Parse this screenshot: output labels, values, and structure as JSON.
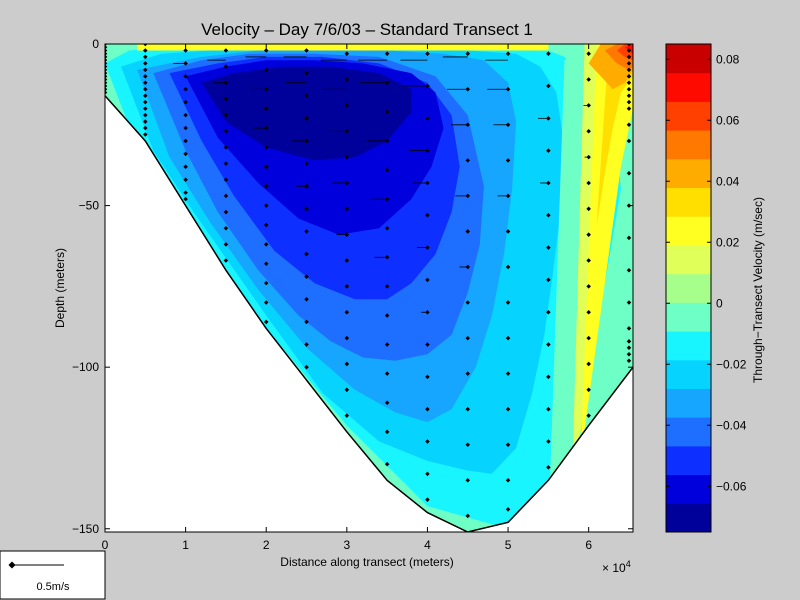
{
  "chart_data": {
    "type": "heatmap",
    "title": "Velocity – Day 7/6/03 – Standard Transect 1",
    "xlabel": "Distance along transect (meters)",
    "ylabel": "Depth (meters)",
    "x_multiplier_label": "× 10",
    "x_multiplier_exp": "4",
    "xlim": [
      0,
      65500
    ],
    "ylim": [
      -151,
      0
    ],
    "x_ticks": [
      0,
      10000,
      20000,
      30000,
      40000,
      50000,
      60000
    ],
    "x_tick_labels": [
      "0",
      "1",
      "2",
      "3",
      "4",
      "5",
      "6"
    ],
    "y_ticks": [
      0,
      -50,
      -100,
      -150
    ],
    "y_tick_labels": [
      "0",
      "−50",
      "−100",
      "−150"
    ],
    "colorbar": {
      "label": "Through−Transect Velocity (m/sec)",
      "min": -0.075,
      "max": 0.085,
      "ticks": [
        0.08,
        0.06,
        0.04,
        0.02,
        0,
        -0.02,
        -0.04,
        -0.06
      ],
      "tick_labels": [
        "0.08",
        "0.06",
        "0.04",
        "0.02",
        "0",
        "−0.02",
        "−0.04",
        "−0.06"
      ],
      "colors": [
        "#00009b",
        "#0000dc",
        "#0d2fff",
        "#1e6fff",
        "#16a6ff",
        "#06d4ff",
        "#18f5ff",
        "#6dffc5",
        "#a7ff8b",
        "#e1ff59",
        "#ffff21",
        "#ffdf00",
        "#ffac00",
        "#ff7800",
        "#ff4000",
        "#ff0a00",
        "#c90000"
      ]
    },
    "bottom": {
      "x": [
        0,
        5000,
        10000,
        15000,
        20000,
        25000,
        30000,
        35000,
        40000,
        45000,
        50000,
        55000,
        60000,
        65500
      ],
      "depth": [
        -16,
        -30,
        -50,
        -70,
        -88,
        -104,
        -120,
        -135,
        -145,
        -151,
        -148,
        -135,
        -118,
        -100
      ]
    },
    "vector_scale": {
      "label": "0.5m/s",
      "value": 0.5
    },
    "contours": [
      {
        "level": -0.01,
        "x": [
          0,
          4000,
          10000,
          20000,
          30000,
          40000,
          50000,
          55000,
          58000,
          59500,
          60500,
          62000,
          63000,
          64000,
          63500,
          61000,
          58500,
          57000,
          55000,
          53000,
          50000,
          46000,
          41000,
          35000,
          27000,
          20000,
          14000,
          8000,
          3000
        ],
        "y": [
          -6,
          -32,
          -51,
          -88,
          -118,
          -143,
          -150,
          -137,
          -122,
          -110,
          -92,
          -74,
          -60,
          -45,
          -30,
          -20,
          -10,
          -4,
          -2,
          -1,
          -1,
          -1,
          -1,
          -1,
          -1,
          -1,
          -1,
          -1,
          -2
        ]
      },
      {
        "level": -0.02,
        "x": [
          2000,
          6000,
          11000,
          20000,
          27000,
          34000,
          40000,
          45000,
          48000,
          51000,
          53000,
          54500,
          55500,
          56500,
          57000,
          56000,
          54000,
          51000,
          45000,
          37000,
          28000,
          20000,
          13000,
          7000
        ],
        "y": [
          -7,
          -33,
          -52,
          -84,
          -108,
          -123,
          -129,
          -132,
          -133,
          -125,
          -108,
          -90,
          -72,
          -52,
          -32,
          -15,
          -7,
          -3,
          -2,
          -2,
          -2,
          -2,
          -2,
          -3
        ]
      },
      {
        "level": -0.03,
        "x": [
          4000,
          8000,
          13000,
          19000,
          25000,
          31000,
          36000,
          40000,
          43000,
          46000,
          48000,
          49500,
          50500,
          51000,
          50000,
          47000,
          42000,
          35000,
          27000,
          19000,
          12000
        ],
        "y": [
          -8,
          -35,
          -55,
          -76,
          -94,
          -107,
          -114,
          -117,
          -113,
          -100,
          -84,
          -65,
          -45,
          -24,
          -12,
          -5,
          -3,
          -2,
          -2,
          -2,
          -4
        ]
      },
      {
        "level": -0.04,
        "x": [
          6000,
          10000,
          14000,
          19000,
          24000,
          28000,
          32000,
          36000,
          40000,
          43000,
          45000,
          46500,
          47000,
          45000,
          41000,
          34000,
          26000,
          18000,
          12000
        ],
        "y": [
          -9,
          -33,
          -52,
          -70,
          -84,
          -92,
          -97,
          -98,
          -96,
          -90,
          -77,
          -62,
          -44,
          -22,
          -10,
          -4,
          -3,
          -3,
          -5
        ]
      },
      {
        "level": -0.05,
        "x": [
          8000,
          12000,
          16000,
          21000,
          26000,
          31000,
          35000,
          38000,
          41000,
          43000,
          44000,
          43000,
          40000,
          34000,
          27000,
          20000,
          14000
        ],
        "y": [
          -9,
          -30,
          -47,
          -64,
          -74,
          -79,
          -79,
          -74,
          -65,
          -52,
          -38,
          -22,
          -12,
          -6,
          -4,
          -4,
          -6
        ]
      },
      {
        "level": -0.06,
        "x": [
          10000,
          14000,
          19000,
          24000,
          29000,
          34000,
          38000,
          40500,
          42000,
          41000,
          38000,
          32000,
          26000,
          20000,
          15000
        ],
        "y": [
          -10,
          -29,
          -43,
          -54,
          -59,
          -57,
          -48,
          -38,
          -26,
          -15,
          -9,
          -6,
          -5,
          -5,
          -7
        ]
      },
      {
        "level": -0.07,
        "x": [
          12000,
          15000,
          20000,
          26000,
          31000,
          35000,
          38000,
          38000,
          34000,
          28000,
          22000,
          16000
        ],
        "y": [
          -12,
          -24,
          -32,
          -36,
          -35,
          -30,
          -21,
          -14,
          -9,
          -7,
          -7,
          -9
        ]
      },
      {
        "level": 0,
        "x": [
          55000,
          57000,
          58000,
          58500,
          59500,
          60500,
          61500,
          62500,
          63500,
          64500,
          65500,
          65500,
          62000,
          60500,
          59000,
          57000
        ],
        "y": [
          -150,
          -137,
          -125,
          -110,
          -92,
          -75,
          -58,
          -40,
          -24,
          -15,
          -10,
          0,
          0,
          -2,
          -4,
          -5
        ]
      },
      {
        "level": 0.01,
        "x": [
          58000,
          59000,
          60000,
          61000,
          62000,
          63000,
          64000,
          65000,
          65500,
          65500,
          64000,
          62500,
          61000,
          59500
        ],
        "y": [
          -130,
          -120,
          -104,
          -88,
          -70,
          -52,
          -34,
          -20,
          -12,
          0,
          0,
          0,
          0,
          0
        ]
      },
      {
        "level": 0.02,
        "x": [
          4000,
          10000,
          20000,
          30000,
          40000,
          50000,
          55000,
          55000,
          50000,
          40000,
          30000,
          20000,
          10000,
          4000
        ],
        "y": [
          0,
          0,
          0,
          0,
          0,
          0,
          0,
          -2,
          -2,
          -2,
          -2,
          -2,
          -2,
          -2
        ]
      },
      {
        "level": 0.02,
        "x": [
          59000,
          60000,
          61000,
          62000,
          63000,
          64000,
          65500,
          65500,
          64000,
          62500,
          61000
        ],
        "y": [
          -128,
          -110,
          -92,
          -74,
          -56,
          -38,
          -20,
          0,
          0,
          0,
          0
        ]
      },
      {
        "level": 0.03,
        "x": [
          61000,
          62000,
          63000,
          64000,
          65500,
          65500,
          64000,
          62500
        ],
        "y": [
          -56,
          -40,
          -26,
          -15,
          -10,
          0,
          0,
          0
        ]
      },
      {
        "level": 0.04,
        "x": [
          60000,
          61500,
          63000,
          64500,
          65500,
          65500,
          63500,
          61500
        ],
        "y": [
          -6,
          -10,
          -14,
          -12,
          -8,
          0,
          0,
          0
        ]
      },
      {
        "level": 0.05,
        "x": [
          62000,
          63500,
          65000,
          65500,
          65500,
          63500
        ],
        "y": [
          -2,
          -6,
          -8,
          -7,
          0,
          0
        ]
      },
      {
        "level": 0.06,
        "x": [
          63500,
          64500,
          65500,
          65500,
          64500
        ],
        "y": [
          -2,
          -4,
          -5,
          0,
          0
        ]
      },
      {
        "level": 0.07,
        "x": [
          64500,
          65000,
          65500,
          65500
        ],
        "y": [
          -1,
          -2,
          -3,
          0
        ]
      }
    ],
    "stations": [
      {
        "x": 0,
        "depths": [
          0,
          -1,
          -2,
          -3,
          -4,
          -5,
          -6,
          -7,
          -8,
          -9,
          -10,
          -11,
          -12,
          -13,
          -14,
          -15
        ]
      },
      {
        "x": 5000,
        "depths": [
          0,
          -2,
          -4,
          -6,
          -8,
          -10,
          -12,
          -14,
          -16,
          -18,
          -20,
          -22,
          -24,
          -26,
          -28
        ]
      },
      {
        "x": 10000,
        "depths": [
          -2,
          -6,
          -10,
          -14,
          -18,
          -22,
          -26,
          -30,
          -34,
          -38,
          -42,
          -46,
          -48
        ]
      },
      {
        "x": 15000,
        "depths": [
          -2,
          -7,
          -12,
          -17,
          -22,
          -27,
          -32,
          -37,
          -42,
          -47,
          -52,
          -57,
          -62,
          -67
        ]
      },
      {
        "x": 20000,
        "depths": [
          -2,
          -8,
          -14,
          -20,
          -26,
          -32,
          -38,
          -44,
          -50,
          -56,
          -62,
          -68,
          -74,
          -80,
          -86
        ]
      },
      {
        "x": 25000,
        "depths": [
          -2,
          -9,
          -16,
          -23,
          -30,
          -37,
          -44,
          -51,
          -58,
          -65,
          -72,
          -79,
          -86,
          -93,
          -100
        ]
      },
      {
        "x": 30000,
        "depths": [
          -3,
          -11,
          -19,
          -27,
          -35,
          -43,
          -51,
          -59,
          -67,
          -75,
          -83,
          -91,
          -99,
          -107,
          -115
        ]
      },
      {
        "x": 35000,
        "depths": [
          -3,
          -12,
          -21,
          -30,
          -39,
          -48,
          -57,
          -66,
          -75,
          -84,
          -93,
          -102,
          -111,
          -120,
          -130
        ]
      },
      {
        "x": 40000,
        "depths": [
          -3,
          -13,
          -23,
          -33,
          -43,
          -53,
          -63,
          -73,
          -83,
          -93,
          -103,
          -113,
          -123,
          -133,
          -141
        ]
      },
      {
        "x": 45000,
        "depths": [
          -3,
          -14,
          -25,
          -36,
          -47,
          -58,
          -69,
          -80,
          -91,
          -102,
          -113,
          -124,
          -135,
          -146
        ]
      },
      {
        "x": 50000,
        "depths": [
          -3,
          -14,
          -25,
          -36,
          -47,
          -58,
          -69,
          -80,
          -91,
          -102,
          -113,
          -124,
          -135,
          -144
        ]
      },
      {
        "x": 55000,
        "depths": [
          -3,
          -13,
          -23,
          -33,
          -43,
          -53,
          -63,
          -73,
          -83,
          -93,
          -103,
          -113,
          -123,
          -131
        ]
      },
      {
        "x": 60000,
        "depths": [
          -3,
          -11,
          -19,
          -27,
          -35,
          -43,
          -51,
          -59,
          -67,
          -75,
          -83,
          -91,
          -99,
          -107,
          -115
        ]
      },
      {
        "x": 65000,
        "depths": [
          0,
          -2,
          -4,
          -6,
          -8,
          -10,
          -12,
          -14,
          -16,
          -18,
          -20,
          -25,
          -30,
          -40,
          -50,
          -60,
          -70,
          -80,
          -88,
          -92,
          -94,
          -96,
          -98
        ]
      }
    ],
    "velocity_vectors": [
      {
        "x": 10000,
        "y": -6,
        "v": -0.12
      },
      {
        "x": 15000,
        "y": -5,
        "v": -0.18
      },
      {
        "x": 20000,
        "y": -4,
        "v": -0.2
      },
      {
        "x": 25000,
        "y": -4,
        "v": -0.22
      },
      {
        "x": 30000,
        "y": -5,
        "v": -0.25
      },
      {
        "x": 35000,
        "y": -5,
        "v": -0.28
      },
      {
        "x": 40000,
        "y": -5,
        "v": -0.26
      },
      {
        "x": 45000,
        "y": -4,
        "v": -0.24
      },
      {
        "x": 50000,
        "y": -5,
        "v": -0.22
      },
      {
        "x": 25000,
        "y": -12,
        "v": -0.2
      },
      {
        "x": 30000,
        "y": -14,
        "v": -0.24
      },
      {
        "x": 35000,
        "y": -12,
        "v": -0.26
      },
      {
        "x": 40000,
        "y": -13,
        "v": -0.24
      },
      {
        "x": 45000,
        "y": -14,
        "v": -0.2
      },
      {
        "x": 50000,
        "y": -14,
        "v": -0.2
      },
      {
        "x": 30000,
        "y": -27,
        "v": -0.18
      },
      {
        "x": 35000,
        "y": -30,
        "v": -0.2
      },
      {
        "x": 40000,
        "y": -33,
        "v": -0.18
      },
      {
        "x": 45000,
        "y": -25,
        "v": -0.16
      },
      {
        "x": 50000,
        "y": -25,
        "v": -0.14
      },
      {
        "x": 55000,
        "y": -23,
        "v": -0.1
      },
      {
        "x": 30000,
        "y": -43,
        "v": -0.14
      },
      {
        "x": 35000,
        "y": -48,
        "v": -0.16
      },
      {
        "x": 40000,
        "y": -43,
        "v": -0.14
      },
      {
        "x": 45000,
        "y": -47,
        "v": -0.12
      },
      {
        "x": 50000,
        "y": -47,
        "v": -0.1
      },
      {
        "x": 55000,
        "y": -43,
        "v": -0.08
      },
      {
        "x": 30000,
        "y": -59,
        "v": -0.1
      },
      {
        "x": 35000,
        "y": -66,
        "v": -0.12
      },
      {
        "x": 40000,
        "y": -63,
        "v": -0.1
      },
      {
        "x": 45000,
        "y": -69,
        "v": -0.08
      },
      {
        "x": 60000,
        "y": -19,
        "v": -0.05
      },
      {
        "x": 60000,
        "y": -35,
        "v": -0.04
      },
      {
        "x": 20000,
        "y": -14,
        "v": -0.16
      },
      {
        "x": 15000,
        "y": -12,
        "v": -0.12
      },
      {
        "x": 20000,
        "y": -26,
        "v": -0.12
      },
      {
        "x": 25000,
        "y": -30,
        "v": -0.15
      },
      {
        "x": 25000,
        "y": -44,
        "v": -0.1
      },
      {
        "x": 40000,
        "y": -83,
        "v": -0.06
      }
    ]
  }
}
